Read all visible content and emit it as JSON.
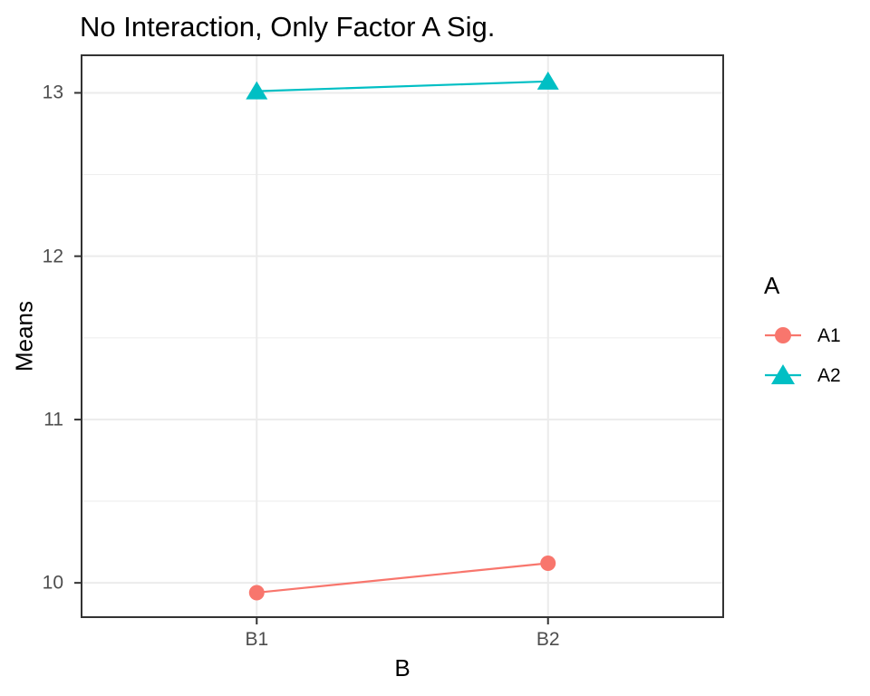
{
  "chart_data": {
    "type": "line",
    "title": "No Interaction, Only Factor A Sig.",
    "xlabel": "B",
    "ylabel": "Means",
    "categories": [
      "B1",
      "B2"
    ],
    "series": [
      {
        "name": "A1",
        "values": [
          9.94,
          10.12
        ],
        "color": "#F8766D",
        "marker": "circle"
      },
      {
        "name": "A2",
        "values": [
          13.01,
          13.07
        ],
        "color": "#00BFC4",
        "marker": "triangle"
      }
    ],
    "ylim": [
      9.79,
      13.23
    ],
    "yticks": [
      10,
      11,
      12,
      13
    ],
    "yticks_minor": [
      10.5,
      11.5,
      12.5
    ],
    "grid": true,
    "legend": {
      "title": "A",
      "position": "right"
    }
  },
  "colors": {
    "grid_major": "#EBEBEB",
    "grid_minor": "#EFEFEF",
    "panel_border": "#333333",
    "tick_mark": "#333333",
    "axis_text": "#4D4D4D",
    "title_text": "#000000"
  }
}
